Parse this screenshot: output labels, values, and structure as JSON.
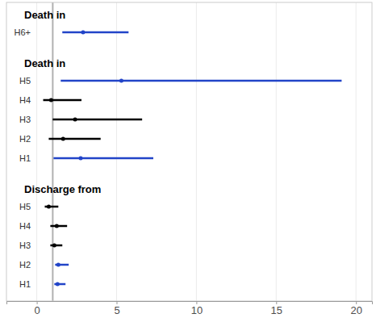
{
  "chart_data": {
    "type": "forest",
    "xlim": [
      -1.9,
      21
    ],
    "xticks": [
      0,
      5,
      10,
      15,
      20
    ],
    "grid": true,
    "reference_line": 1,
    "groups": [
      {
        "title": "Death in",
        "categories": [
          "H6+"
        ],
        "values": [
          2.9
        ],
        "lower": [
          1.6
        ],
        "upper": [
          5.75
        ],
        "colors": [
          "#2244c8"
        ]
      },
      {
        "title": "Death in",
        "categories": [
          "H5",
          "H4",
          "H3",
          "H2",
          "H1"
        ],
        "values": [
          5.3,
          0.9,
          2.4,
          1.65,
          2.75
        ],
        "lower": [
          1.5,
          0.4,
          1.0,
          0.75,
          1.05
        ],
        "upper": [
          19.1,
          2.8,
          6.6,
          4.0,
          7.3
        ],
        "colors": [
          "#2244c8",
          "#000000",
          "#000000",
          "#000000",
          "#2244c8"
        ]
      },
      {
        "title": "Discharge from",
        "categories": [
          "H5",
          "H4",
          "H3",
          "H2",
          "H1"
        ],
        "values": [
          0.75,
          1.25,
          1.1,
          1.35,
          1.3
        ],
        "lower": [
          0.5,
          0.85,
          0.85,
          1.15,
          1.1
        ],
        "upper": [
          1.35,
          1.9,
          1.6,
          2.0,
          1.8
        ],
        "colors": [
          "#000000",
          "#000000",
          "#000000",
          "#2244c8",
          "#2244c8"
        ]
      }
    ]
  }
}
